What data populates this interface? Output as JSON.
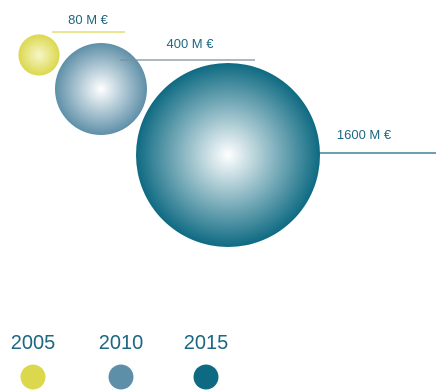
{
  "chart_data": {
    "type": "bubble",
    "series": [
      {
        "name": "2005",
        "value": 80,
        "label": "80 M €",
        "color": "#dbd84e",
        "color_light": "#f7f6c8"
      },
      {
        "name": "2010",
        "value": 400,
        "label": "400 M €",
        "color": "#5e8fa8",
        "color_light": "#ffffff"
      },
      {
        "name": "2015",
        "value": 1600,
        "label": "1600 M €",
        "color": "#0e6a82",
        "color_light": "#ffffff"
      }
    ],
    "unit": "M €",
    "legend_position": "bottom-left"
  },
  "colors": {
    "label_text": "#1d6782",
    "year_text": "#1d6782",
    "leader_2005": "#dbd84e",
    "leader_2010": "#7a8f9c",
    "leader_2015": "#0e6a82"
  }
}
